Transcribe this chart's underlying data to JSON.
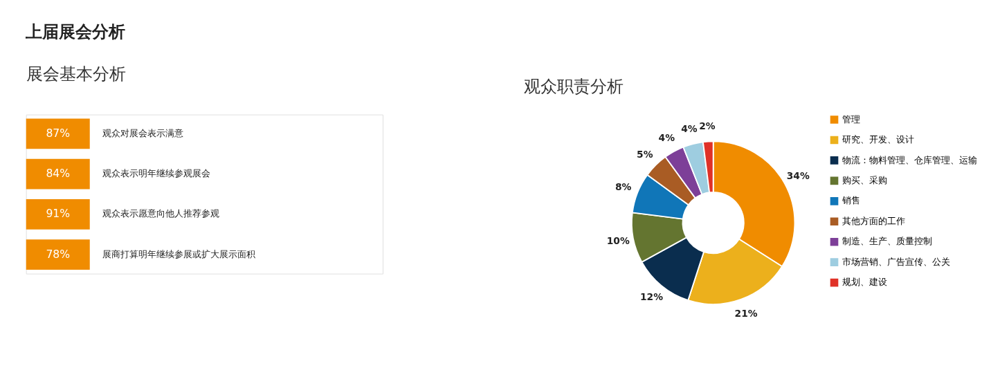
{
  "chart_data": [
    {
      "type": "other",
      "title": "展会基本分析",
      "annotations": [
        "上届展会分析"
      ],
      "categories": [
        "观众对展会表示满意",
        "观众表示明年继续参观展会",
        "观众表示愿意向他人推荐参观",
        "展商打算明年继续参展或扩大展示面积"
      ],
      "values": [
        87,
        84,
        91,
        78
      ],
      "value_labels": [
        "87%",
        "84%",
        "91%",
        "78%"
      ],
      "color": "#f08c00"
    },
    {
      "type": "donut",
      "title": "观众职责分析",
      "categories": [
        "管理",
        "研究、开发、设计",
        "物流：物料管理、仓库管理、运输",
        "购买、采购",
        "销售",
        "其他方面的工作",
        "制造、生产、质量控制",
        "市场营销、广告宣传、公关",
        "规划、建设"
      ],
      "values": [
        34,
        21,
        12,
        10,
        8,
        5,
        4,
        4,
        2
      ],
      "value_labels": [
        "34%",
        "21%",
        "12%",
        "10%",
        "8%",
        "5%",
        "4%",
        "4%",
        "2%"
      ],
      "colors": [
        "#f08c00",
        "#ecb01c",
        "#0a2d4e",
        "#647530",
        "#1076b8",
        "#a95c24",
        "#7d3f98",
        "#9ecde0",
        "#e03127"
      ],
      "legend": "right"
    }
  ]
}
